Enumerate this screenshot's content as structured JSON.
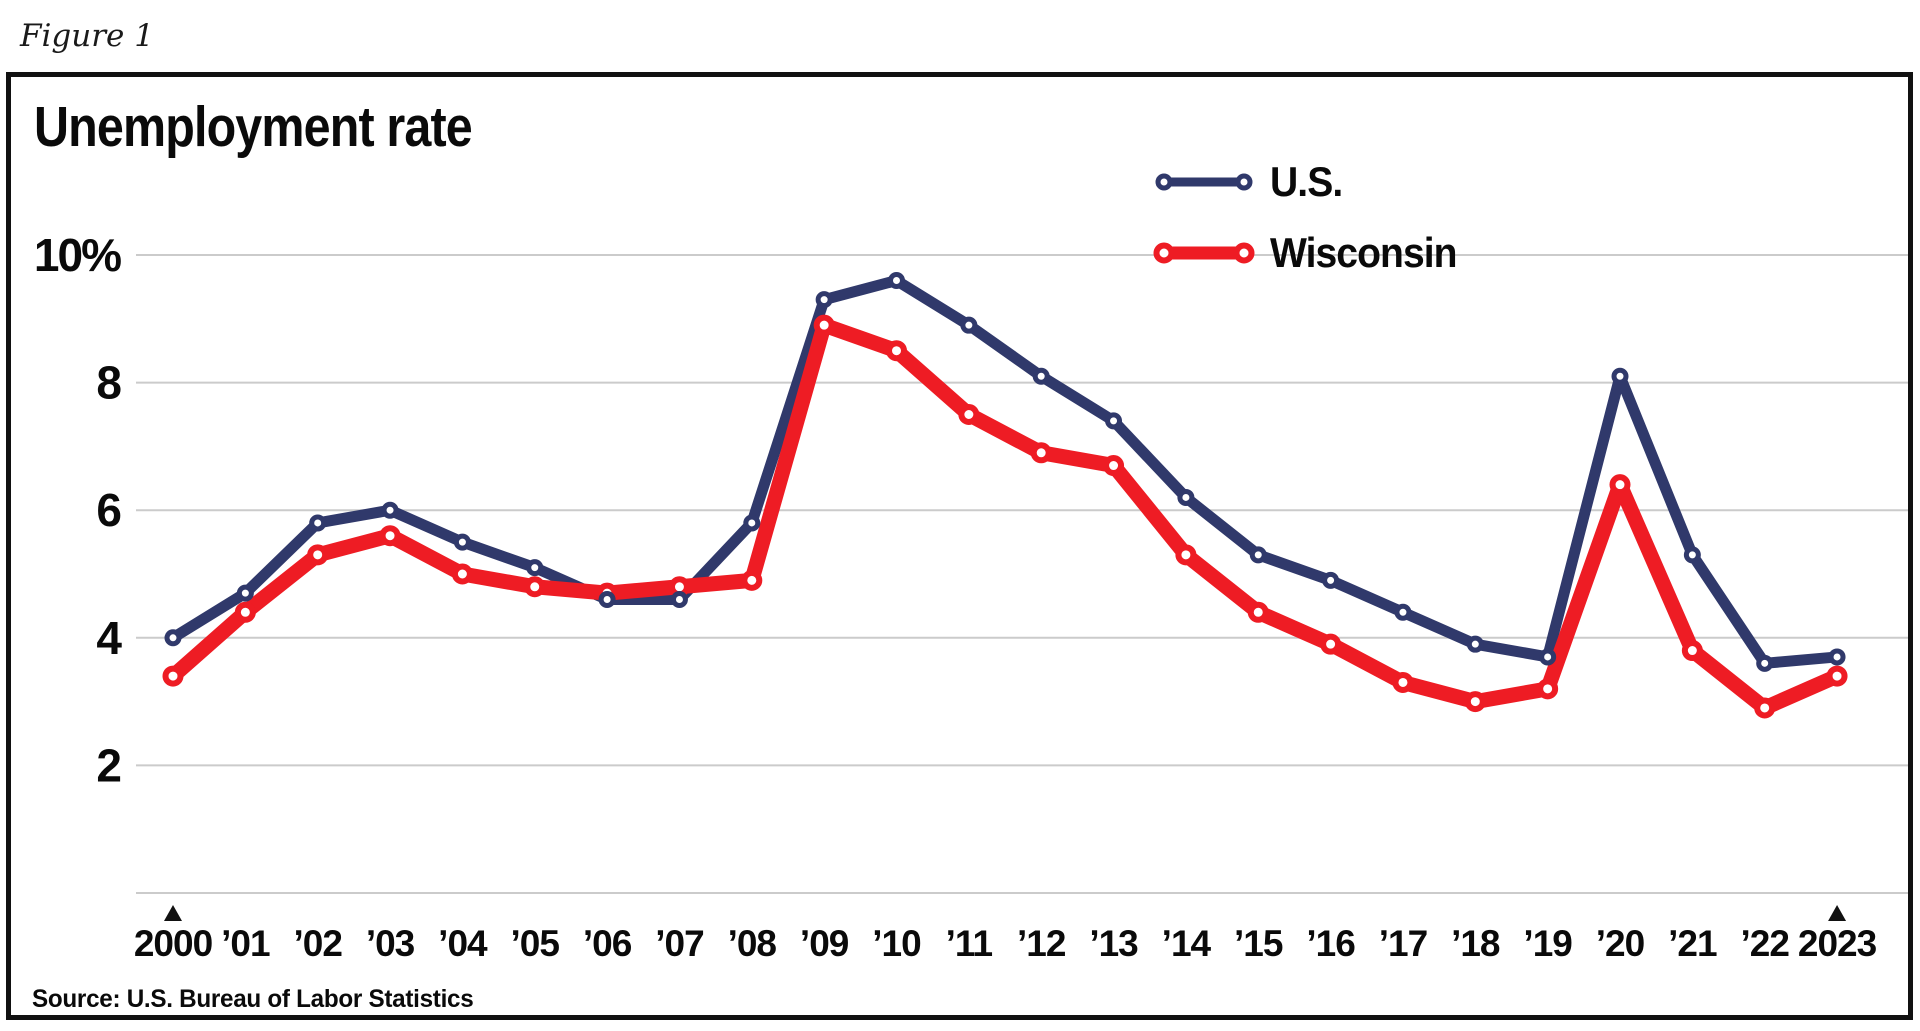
{
  "figure_label": "Figure 1",
  "chart": {
    "title": "Unemployment rate",
    "source": "Source: U.S. Bureau of Labor Statistics"
  },
  "colors": {
    "us_navy": "#30396b",
    "wisconsin_red": "#ee1c24",
    "gridline": "#cbcbcb",
    "text": "#0a0a0a",
    "frame": "#111111"
  },
  "chart_data": {
    "type": "line",
    "title": "Unemployment rate",
    "x_categories": [
      "2000",
      "’01",
      "’02",
      "’03",
      "’04",
      "’05",
      "’06",
      "’07",
      "’08",
      "’09",
      "’10",
      "’11",
      "’12",
      "’13",
      "’14",
      "’15",
      "’16",
      "’17",
      "’18",
      "’19",
      "’20",
      "’21",
      "’22",
      "2023"
    ],
    "series": [
      {
        "name": "U.S.",
        "color": "#30396b",
        "values": [
          4.0,
          4.7,
          5.8,
          6.0,
          5.5,
          5.1,
          4.6,
          4.6,
          5.8,
          9.3,
          9.6,
          8.9,
          8.1,
          7.4,
          6.2,
          5.3,
          4.9,
          4.4,
          3.9,
          3.7,
          8.1,
          5.3,
          3.6,
          3.7
        ]
      },
      {
        "name": "Wisconsin",
        "color": "#ee1c24",
        "values": [
          3.4,
          4.4,
          5.3,
          5.6,
          5.0,
          4.8,
          4.7,
          4.8,
          4.9,
          8.9,
          8.5,
          7.5,
          6.9,
          6.7,
          5.3,
          4.4,
          3.9,
          3.3,
          3.0,
          3.2,
          6.4,
          3.8,
          2.9,
          3.4
        ]
      }
    ],
    "y_ticks": [
      {
        "value": 10,
        "label": "10%"
      },
      {
        "value": 8,
        "label": "8"
      },
      {
        "value": 6,
        "label": "6"
      },
      {
        "value": 4,
        "label": "4"
      },
      {
        "value": 2,
        "label": "2"
      },
      {
        "value": 0,
        "label": ""
      }
    ],
    "ylim": [
      0,
      10.8
    ],
    "grid": true,
    "legend_position": "top-right",
    "endpoint_markers": [
      "2000",
      "2023"
    ]
  }
}
